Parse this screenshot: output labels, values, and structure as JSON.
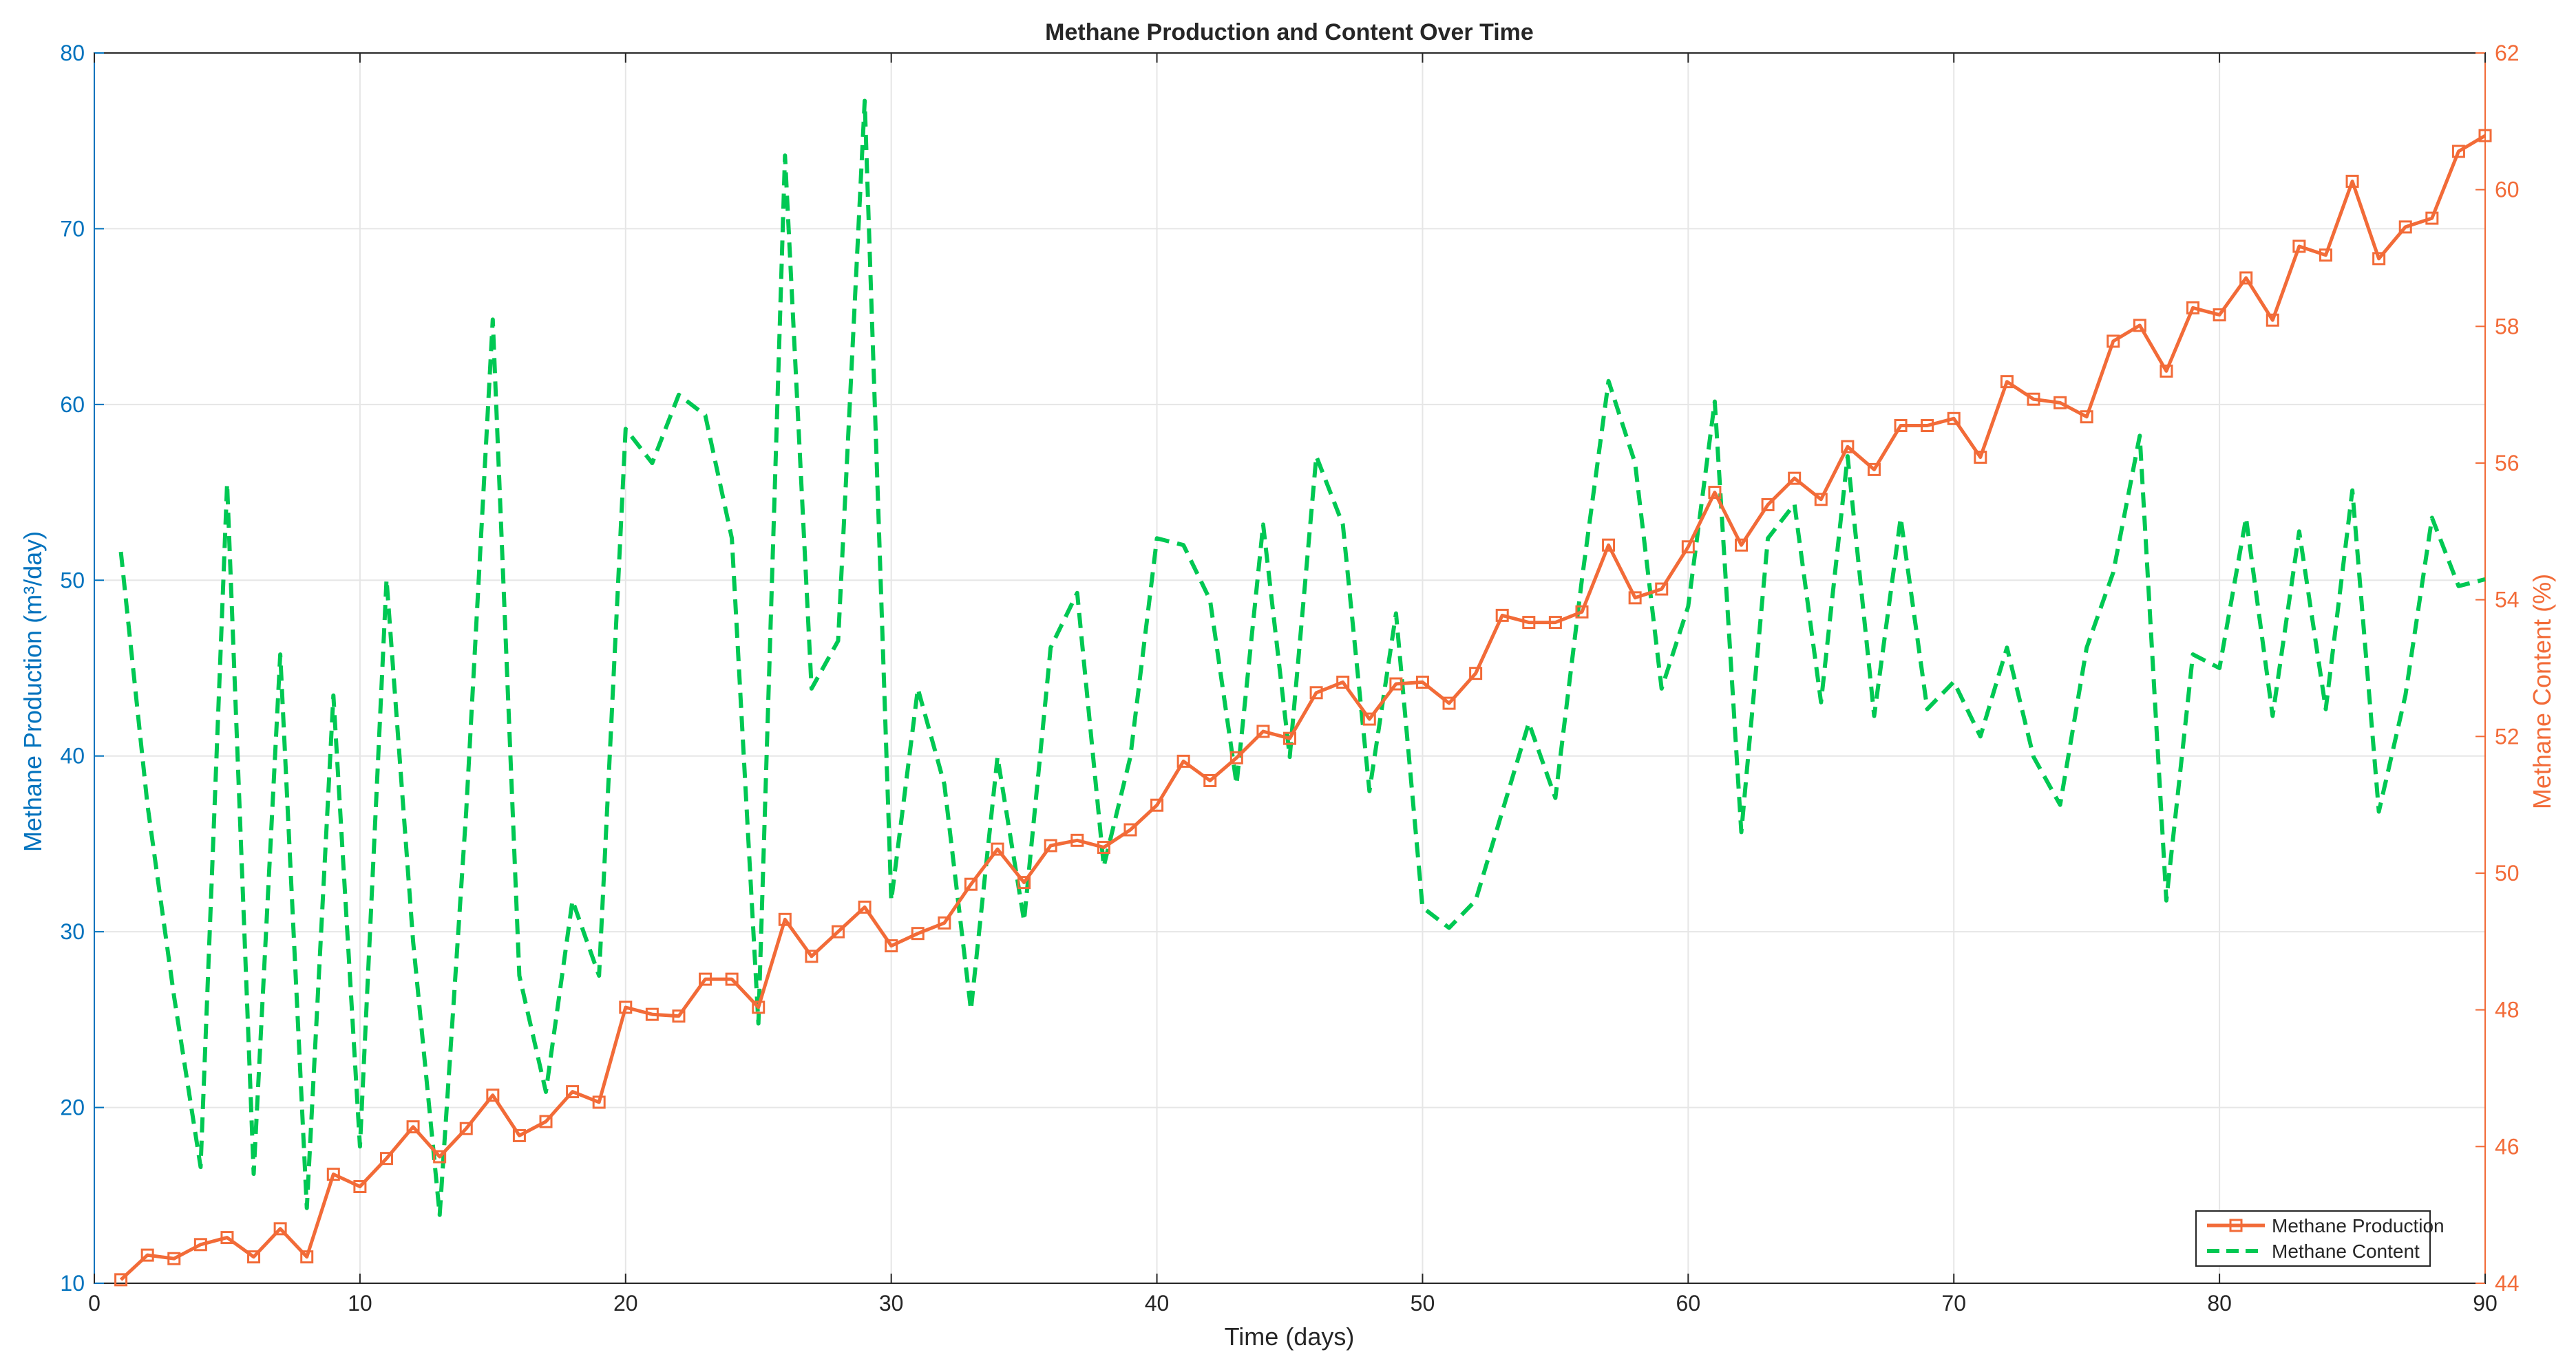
{
  "chart_data": {
    "type": "line",
    "title": "Methane Production and Content Over Time",
    "xlabel": "Time (days)",
    "ylabel_left": "Methane Production (m³/day)",
    "ylabel_right": "Methane Content (%)",
    "xlim": [
      0,
      90
    ],
    "ylim_left": [
      10,
      80
    ],
    "ylim_right": [
      44,
      62
    ],
    "x_ticks": [
      0,
      10,
      20,
      30,
      40,
      50,
      60,
      70,
      80,
      90
    ],
    "y_left_ticks": [
      10,
      20,
      30,
      40,
      50,
      60,
      70,
      80
    ],
    "y_right_ticks": [
      44,
      46,
      48,
      50,
      52,
      54,
      56,
      58,
      60,
      62
    ],
    "grid": true,
    "legend_position": "bottom-right",
    "colors": {
      "production": "#F26B38",
      "content": "#00C853",
      "left_axis": "#0072BD",
      "right_axis": "#F26B38",
      "grid": "#e6e6e6"
    },
    "series": [
      {
        "name": "Methane Production",
        "axis": "left",
        "style": "solid-square-markers",
        "x": [
          1,
          2,
          3,
          4,
          5,
          6,
          7,
          8,
          9,
          10,
          11,
          12,
          13,
          14,
          15,
          16,
          17,
          18,
          19,
          20,
          21,
          22,
          23,
          24,
          25,
          26,
          27,
          28,
          29,
          30,
          31,
          32,
          33,
          34,
          35,
          36,
          37,
          38,
          39,
          40,
          41,
          42,
          43,
          44,
          45,
          46,
          47,
          48,
          49,
          50,
          51,
          52,
          53,
          54,
          55,
          56,
          57,
          58,
          59,
          60,
          61,
          62,
          63,
          64,
          65,
          66,
          67,
          68,
          69,
          70,
          71,
          72,
          73,
          74,
          75,
          76,
          77,
          78,
          79,
          80,
          81,
          82,
          83,
          84,
          85,
          86,
          87,
          88,
          89,
          90
        ],
        "values": [
          10.2,
          11.6,
          11.4,
          12.2,
          12.6,
          11.5,
          13.1,
          11.5,
          16.2,
          15.5,
          17.1,
          18.9,
          17.2,
          18.8,
          20.7,
          18.4,
          19.2,
          20.9,
          20.3,
          25.7,
          25.3,
          25.2,
          27.3,
          27.3,
          25.7,
          30.7,
          28.6,
          30.0,
          31.4,
          29.2,
          29.9,
          30.5,
          32.7,
          34.7,
          32.8,
          34.9,
          35.2,
          34.8,
          35.8,
          37.2,
          39.7,
          38.6,
          39.9,
          41.4,
          41.0,
          43.6,
          44.2,
          42.1,
          44.1,
          44.2,
          43.0,
          44.7,
          48.0,
          47.6,
          47.6,
          48.2,
          52.0,
          49.0,
          49.5,
          51.9,
          55.0,
          52.0,
          54.3,
          55.8,
          54.6,
          57.6,
          56.3,
          58.8,
          58.8,
          59.2,
          57.0,
          61.3,
          60.3,
          60.1,
          59.3,
          63.6,
          64.5,
          61.9,
          65.5,
          65.1,
          67.2,
          64.8,
          69.0,
          68.5,
          72.7,
          68.3,
          70.1,
          70.6,
          74.4,
          75.3
        ]
      },
      {
        "name": "Methane Content",
        "axis": "right",
        "style": "dashed",
        "x": [
          1,
          2,
          3,
          4,
          5,
          6,
          7,
          8,
          9,
          10,
          11,
          12,
          13,
          14,
          15,
          16,
          17,
          18,
          19,
          20,
          21,
          22,
          23,
          24,
          25,
          26,
          27,
          28,
          29,
          30,
          31,
          32,
          33,
          34,
          35,
          36,
          37,
          38,
          39,
          40,
          41,
          42,
          43,
          44,
          45,
          46,
          47,
          48,
          49,
          50,
          51,
          52,
          53,
          54,
          55,
          56,
          57,
          58,
          59,
          60,
          61,
          62,
          63,
          64,
          65,
          66,
          67,
          68,
          69,
          70,
          71,
          72,
          73,
          74,
          75,
          76,
          77,
          78,
          79,
          80,
          81,
          82,
          83,
          84,
          85,
          86,
          87,
          88,
          89,
          90
        ],
        "values": [
          54.7,
          51.0,
          48.2,
          45.7,
          55.7,
          45.6,
          53.2,
          45.1,
          52.6,
          46.0,
          54.3,
          49.0,
          45.0,
          50.9,
          58.1,
          48.5,
          46.8,
          49.6,
          48.5,
          56.5,
          56.0,
          57.0,
          56.7,
          54.9,
          47.8,
          60.5,
          52.7,
          53.4,
          61.3,
          49.6,
          52.7,
          51.3,
          48.0,
          51.7,
          49.3,
          53.3,
          54.1,
          50.1,
          51.7,
          54.9,
          54.8,
          54.0,
          51.3,
          55.1,
          51.7,
          56.1,
          55.1,
          51.2,
          53.8,
          49.5,
          49.2,
          49.6,
          50.9,
          52.2,
          51.1,
          54.3,
          57.2,
          56.0,
          52.7,
          53.9,
          56.9,
          50.6,
          54.9,
          55.4,
          52.5,
          56.1,
          52.3,
          55.2,
          52.4,
          52.8,
          52.0,
          53.3,
          51.7,
          51.0,
          53.3,
          54.4,
          56.4,
          49.6,
          53.2,
          53.0,
          55.2,
          52.3,
          55.0,
          52.4,
          55.6,
          50.9,
          52.6,
          55.2,
          54.2,
          54.3
        ]
      }
    ]
  }
}
